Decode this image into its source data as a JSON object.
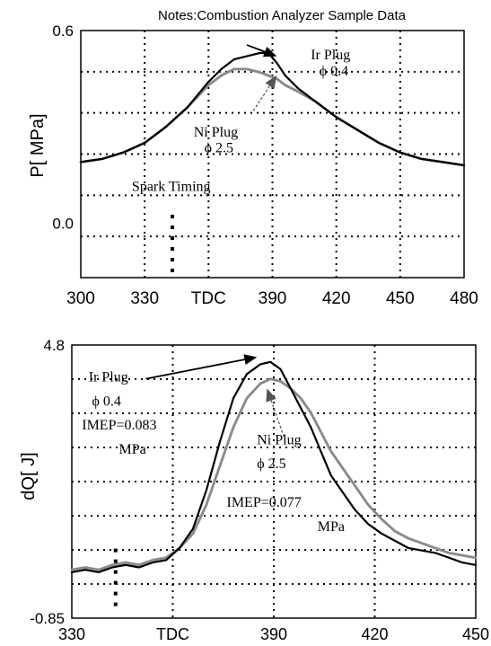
{
  "chart_data": [
    {
      "type": "line",
      "title": "Notes:Combustion Analyzer Sample Data",
      "xlabel": "",
      "ylabel": "P[ MPa]",
      "xlim": [
        300,
        480
      ],
      "ylim": [
        -0.17,
        0.6
      ],
      "x_ticks": [
        {
          "value": 300,
          "label": "300"
        },
        {
          "value": 330,
          "label": "330"
        },
        {
          "value": 360,
          "label": "TDC"
        },
        {
          "value": 390,
          "label": "390"
        },
        {
          "value": 420,
          "label": "420"
        },
        {
          "value": 450,
          "label": "450"
        },
        {
          "value": 480,
          "label": "480"
        }
      ],
      "y_ticks": [
        {
          "value": 0.6,
          "label": "0.6"
        },
        {
          "value": 0.0,
          "label": "0.0"
        }
      ],
      "grid": true,
      "spark_timing_x": 343,
      "series": [
        {
          "name": "Ir Plug",
          "color": "#000000",
          "style": "solid",
          "x": [
            300,
            310,
            320,
            330,
            340,
            350,
            360,
            366,
            372,
            378,
            384,
            388,
            392,
            396,
            402,
            410,
            420,
            430,
            440,
            450,
            460,
            470,
            480
          ],
          "y": [
            0.19,
            0.2,
            0.22,
            0.25,
            0.3,
            0.36,
            0.44,
            0.48,
            0.51,
            0.52,
            0.53,
            0.53,
            0.5,
            0.46,
            0.42,
            0.38,
            0.33,
            0.29,
            0.25,
            0.22,
            0.2,
            0.19,
            0.18
          ]
        },
        {
          "name": "Ni Plug",
          "color": "#8a8a8a",
          "style": "dotted",
          "x": [
            300,
            310,
            320,
            330,
            340,
            350,
            360,
            366,
            372,
            378,
            384,
            388,
            392,
            396,
            402,
            410,
            420,
            430,
            440,
            450,
            460,
            470,
            480
          ],
          "y": [
            0.19,
            0.2,
            0.22,
            0.25,
            0.3,
            0.36,
            0.43,
            0.46,
            0.48,
            0.48,
            0.47,
            0.46,
            0.45,
            0.43,
            0.41,
            0.38,
            0.33,
            0.29,
            0.25,
            0.22,
            0.2,
            0.19,
            0.18
          ]
        }
      ],
      "annotations": [
        {
          "id": "ir-plug-label",
          "text": "Ir Plug",
          "x": 408,
          "y": 0.51,
          "font": "serif"
        },
        {
          "id": "ir-plug-phi",
          "text": "ϕ 0.4",
          "x": 412,
          "y": 0.46,
          "font": "serif"
        },
        {
          "id": "ni-plug-label",
          "text": "Ni Plug",
          "x": 353,
          "y": 0.27,
          "font": "serif"
        },
        {
          "id": "ni-plug-phi",
          "text": "ϕ 2.5",
          "x": 358,
          "y": 0.22,
          "font": "serif"
        },
        {
          "id": "spark-timing-label",
          "text": "Spark Timing",
          "x": 324,
          "y": 0.1,
          "font": "serif"
        }
      ]
    },
    {
      "type": "line",
      "title": "",
      "xlabel": "",
      "ylabel": "dQ[ J]",
      "xlim": [
        330,
        450
      ],
      "ylim": [
        -0.85,
        4.8
      ],
      "x_ticks": [
        {
          "value": 330,
          "label": "330"
        },
        {
          "value": 360,
          "label": "TDC"
        },
        {
          "value": 390,
          "label": "390"
        },
        {
          "value": 420,
          "label": "420"
        },
        {
          "value": 450,
          "label": "450"
        }
      ],
      "y_ticks": [
        {
          "value": 4.8,
          "label": "4.8"
        },
        {
          "value": -0.85,
          "label": "-0.85"
        }
      ],
      "grid": true,
      "spark_timing_x": 343,
      "series": [
        {
          "name": "Ir Plug",
          "color": "#000000",
          "style": "solid",
          "x": [
            330,
            334,
            338,
            342,
            346,
            350,
            354,
            358,
            362,
            366,
            370,
            374,
            378,
            382,
            386,
            389,
            392,
            395,
            398,
            401,
            404,
            407,
            410,
            414,
            418,
            422,
            426,
            430,
            434,
            438,
            442,
            446,
            450
          ],
          "y": [
            0.1,
            0.15,
            0.1,
            0.2,
            0.25,
            0.2,
            0.3,
            0.35,
            0.6,
            1.0,
            1.8,
            2.8,
            3.7,
            4.2,
            4.4,
            4.45,
            4.3,
            3.9,
            3.5,
            3.1,
            2.6,
            2.1,
            1.8,
            1.4,
            1.1,
            0.9,
            0.75,
            0.6,
            0.55,
            0.5,
            0.4,
            0.3,
            0.25
          ]
        },
        {
          "name": "Ni Plug",
          "color": "#8a8a8a",
          "style": "dotted",
          "x": [
            330,
            334,
            338,
            342,
            346,
            350,
            354,
            358,
            362,
            366,
            370,
            374,
            378,
            382,
            386,
            389,
            392,
            395,
            398,
            401,
            404,
            407,
            410,
            414,
            418,
            422,
            426,
            430,
            434,
            438,
            442,
            446,
            450
          ],
          "y": [
            0.15,
            0.2,
            0.15,
            0.25,
            0.3,
            0.25,
            0.35,
            0.4,
            0.6,
            0.9,
            1.5,
            2.3,
            3.1,
            3.7,
            4.0,
            4.1,
            4.05,
            3.9,
            3.7,
            3.4,
            3.0,
            2.6,
            2.3,
            1.9,
            1.5,
            1.2,
            0.95,
            0.8,
            0.7,
            0.6,
            0.5,
            0.45,
            0.4
          ]
        }
      ],
      "annotations": [
        {
          "id": "ir-plug-label",
          "text": "Ir Plug",
          "x": 335,
          "y": 4.05,
          "font": "serif"
        },
        {
          "id": "ir-plug-phi",
          "text": "ϕ 0.4",
          "x": 336,
          "y": 3.55,
          "font": "serif"
        },
        {
          "id": "ir-imep",
          "text": "IMEP=0.083",
          "x": 333,
          "y": 3.05,
          "font": "serif"
        },
        {
          "id": "ir-imep-unit",
          "text": "MPa",
          "x": 344,
          "y": 2.55,
          "font": "serif"
        },
        {
          "id": "ni-plug-label",
          "text": "Ni Plug",
          "x": 385,
          "y": 2.75,
          "font": "serif"
        },
        {
          "id": "ni-plug-phi",
          "text": "ϕ 2.5",
          "x": 385,
          "y": 2.25,
          "font": "serif"
        },
        {
          "id": "ni-imep",
          "text": "IMEP=0.077",
          "x": 376,
          "y": 1.45,
          "font": "serif"
        },
        {
          "id": "ni-imep-unit",
          "text": "MPa",
          "x": 403,
          "y": 0.95,
          "font": "serif"
        }
      ]
    }
  ]
}
